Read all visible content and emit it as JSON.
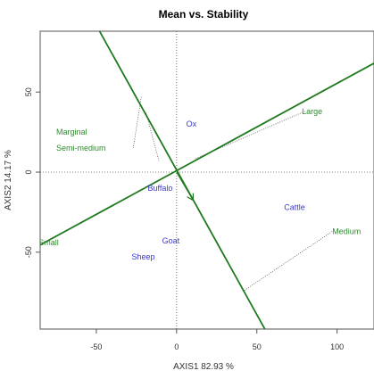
{
  "chart_data": {
    "type": "scatter",
    "title": "Mean vs. Stability",
    "xlabel": "AXIS1 82.93 %",
    "ylabel": "AXIS2 14.17 %",
    "xlim": [
      -85,
      123
    ],
    "ylim": [
      -98,
      88
    ],
    "xticks": [
      -50,
      0,
      50,
      100
    ],
    "yticks": [
      -50,
      0,
      50
    ],
    "grid": false,
    "series": [
      {
        "name": "",
        "color": "#2e8b2e",
        "points": [
          {
            "label": "Marginal",
            "x": -75,
            "y": 25
          },
          {
            "label": "Semi-medium",
            "x": -75,
            "y": 15
          },
          {
            "label": "Large",
            "x": 78,
            "y": 38
          },
          {
            "label": "Small",
            "x": -86,
            "y": -44
          },
          {
            "label": "Medium",
            "x": 97,
            "y": -37
          }
        ]
      },
      {
        "name": "",
        "color": "#3a3acc",
        "points": [
          {
            "label": "Ox",
            "x": 6,
            "y": 30
          },
          {
            "label": "Buffalo",
            "x": -18,
            "y": -10
          },
          {
            "label": "Cattle",
            "x": 67,
            "y": -22
          },
          {
            "label": "Goat",
            "x": -9,
            "y": -43
          },
          {
            "label": "Sheep",
            "x": -28,
            "y": -53
          }
        ]
      }
    ],
    "lines": [
      {
        "kind": "abline",
        "from": [
          -86,
          -46
        ],
        "to": [
          123,
          68
        ]
      },
      {
        "kind": "abline",
        "from": [
          -48,
          88
        ],
        "to": [
          55,
          -98
        ]
      }
    ],
    "projections": [
      {
        "from": [
          -22,
          47
        ],
        "to": [
          -27,
          15
        ]
      },
      {
        "from": [
          -19,
          37
        ],
        "to": [
          -11,
          7
        ]
      },
      {
        "from": [
          80,
          38
        ],
        "to": [
          11,
          8
        ]
      },
      {
        "from": [
          97,
          -37
        ],
        "to": [
          42,
          -74
        ]
      }
    ],
    "arrow": {
      "from": [
        0,
        0
      ],
      "to": [
        10,
        -17
      ]
    }
  }
}
